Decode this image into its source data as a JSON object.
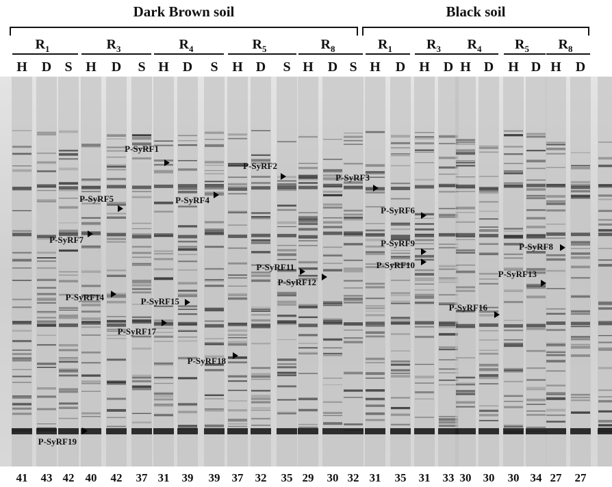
{
  "header": {
    "groups": [
      {
        "title": "Dark Brown soil",
        "replicates": [
          {
            "letter": "R",
            "sub": "1",
            "lanes": [
              "H",
              "D",
              "S"
            ]
          },
          {
            "letter": "R",
            "sub": "3",
            "lanes": [
              "H",
              "D",
              "S"
            ]
          },
          {
            "letter": "R",
            "sub": "4",
            "lanes": [
              "H",
              "D",
              "S"
            ]
          },
          {
            "letter": "R",
            "sub": "5",
            "lanes": [
              "H",
              "D",
              "S"
            ]
          },
          {
            "letter": "R",
            "sub": "8",
            "lanes": [
              "H",
              "D",
              "S"
            ]
          }
        ]
      },
      {
        "title": "Black soil",
        "replicates": [
          {
            "letter": "R",
            "sub": "1",
            "lanes": [
              "H",
              "D"
            ]
          },
          {
            "letter": "R",
            "sub": "3",
            "lanes": [
              "H",
              "D"
            ]
          },
          {
            "letter": "R",
            "sub": "4",
            "lanes": [
              "H",
              "D"
            ]
          },
          {
            "letter": "R",
            "sub": "5",
            "lanes": [
              "H",
              "D"
            ]
          },
          {
            "letter": "R",
            "sub": "8",
            "lanes": [
              "H",
              "D"
            ]
          }
        ]
      }
    ]
  },
  "bands": [
    "P-SyRF1",
    "P-SyRF2",
    "P-SyRF3",
    "P-SyRF4",
    "P-SyRF5",
    "P-SyRF6",
    "P-SyRF7",
    "P-SyRF8",
    "P-SyRF9",
    "P-SyRF10",
    "P-SyRF11",
    "P-SyRF12",
    "P-SyRF13",
    "P-SyRF14",
    "P-SyRF15",
    "P-SyRF16",
    "P-SyRF17",
    "P-SyRF18",
    "P-SyRF19"
  ],
  "lane_counts": [
    "41",
    "43",
    "42",
    "40",
    "42",
    "37",
    "31",
    "39",
    "39",
    "37",
    "32",
    "35",
    "29",
    "30",
    "32",
    "31",
    "35",
    "31",
    "33",
    "30",
    "30",
    "30",
    "34",
    "27",
    "27"
  ]
}
